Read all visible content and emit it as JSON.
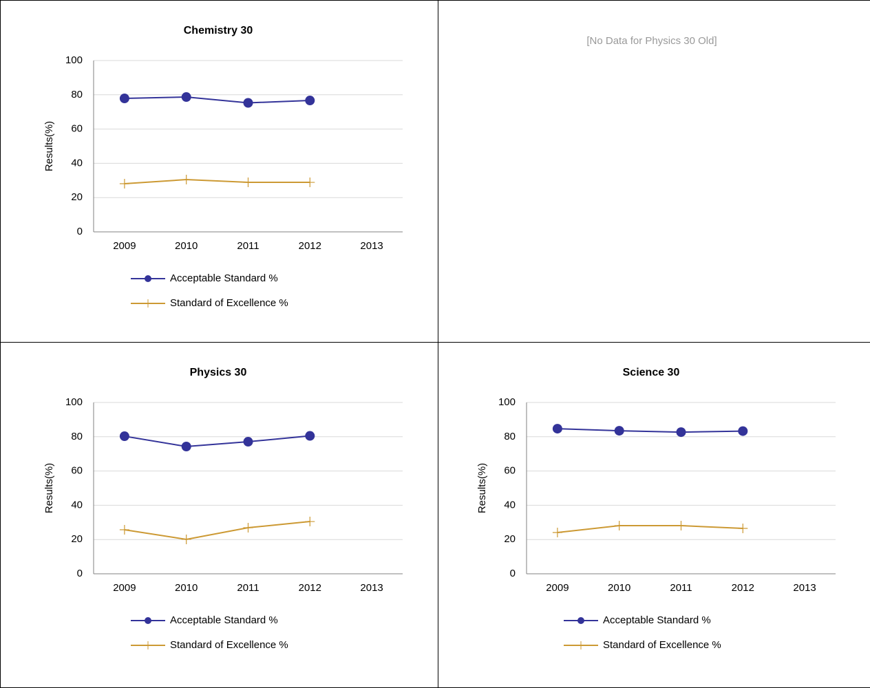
{
  "no_data_message": "[No Data for Physics 30 Old]",
  "chart_data": [
    {
      "type": "line",
      "title": "Chemistry 30",
      "y_label": "Results(%)",
      "categories": [
        "2009",
        "2010",
        "2011",
        "2012",
        "2013"
      ],
      "series": [
        {
          "name": "Acceptable Standard %",
          "color": "#333399",
          "marker": "circle",
          "values": [
            77.9,
            78.7,
            75.3,
            76.7,
            null
          ]
        },
        {
          "name": "Standard of Excellence %",
          "color": "#cc9933",
          "marker": "plus",
          "values": [
            28.1,
            30.5,
            28.9,
            28.9,
            null
          ]
        }
      ],
      "ylim": [
        0,
        100
      ],
      "yticks": [
        0,
        20,
        40,
        60,
        80,
        100
      ],
      "grid": true
    },
    {
      "type": "line",
      "title": "Physics 30",
      "y_label": "Results(%)",
      "categories": [
        "2009",
        "2010",
        "2011",
        "2012",
        "2013"
      ],
      "series": [
        {
          "name": "Acceptable Standard %",
          "color": "#333399",
          "marker": "circle",
          "values": [
            80.3,
            74.3,
            77.1,
            80.5,
            null
          ]
        },
        {
          "name": "Standard of Excellence %",
          "color": "#cc9933",
          "marker": "plus",
          "values": [
            25.7,
            20.1,
            26.9,
            30.5,
            null
          ]
        }
      ],
      "ylim": [
        0,
        100
      ],
      "yticks": [
        0,
        20,
        40,
        60,
        80,
        100
      ],
      "grid": true
    },
    {
      "type": "line",
      "title": "Science 30",
      "y_label": "Results(%)",
      "categories": [
        "2009",
        "2010",
        "2011",
        "2012",
        "2013"
      ],
      "series": [
        {
          "name": "Acceptable Standard %",
          "color": "#333399",
          "marker": "circle",
          "values": [
            84.7,
            83.5,
            82.7,
            83.3,
            null
          ]
        },
        {
          "name": "Standard of Excellence %",
          "color": "#cc9933",
          "marker": "plus",
          "values": [
            24.1,
            28.1,
            28.1,
            26.5,
            null
          ]
        }
      ],
      "ylim": [
        0,
        100
      ],
      "yticks": [
        0,
        20,
        40,
        60,
        80,
        100
      ],
      "grid": true
    }
  ]
}
